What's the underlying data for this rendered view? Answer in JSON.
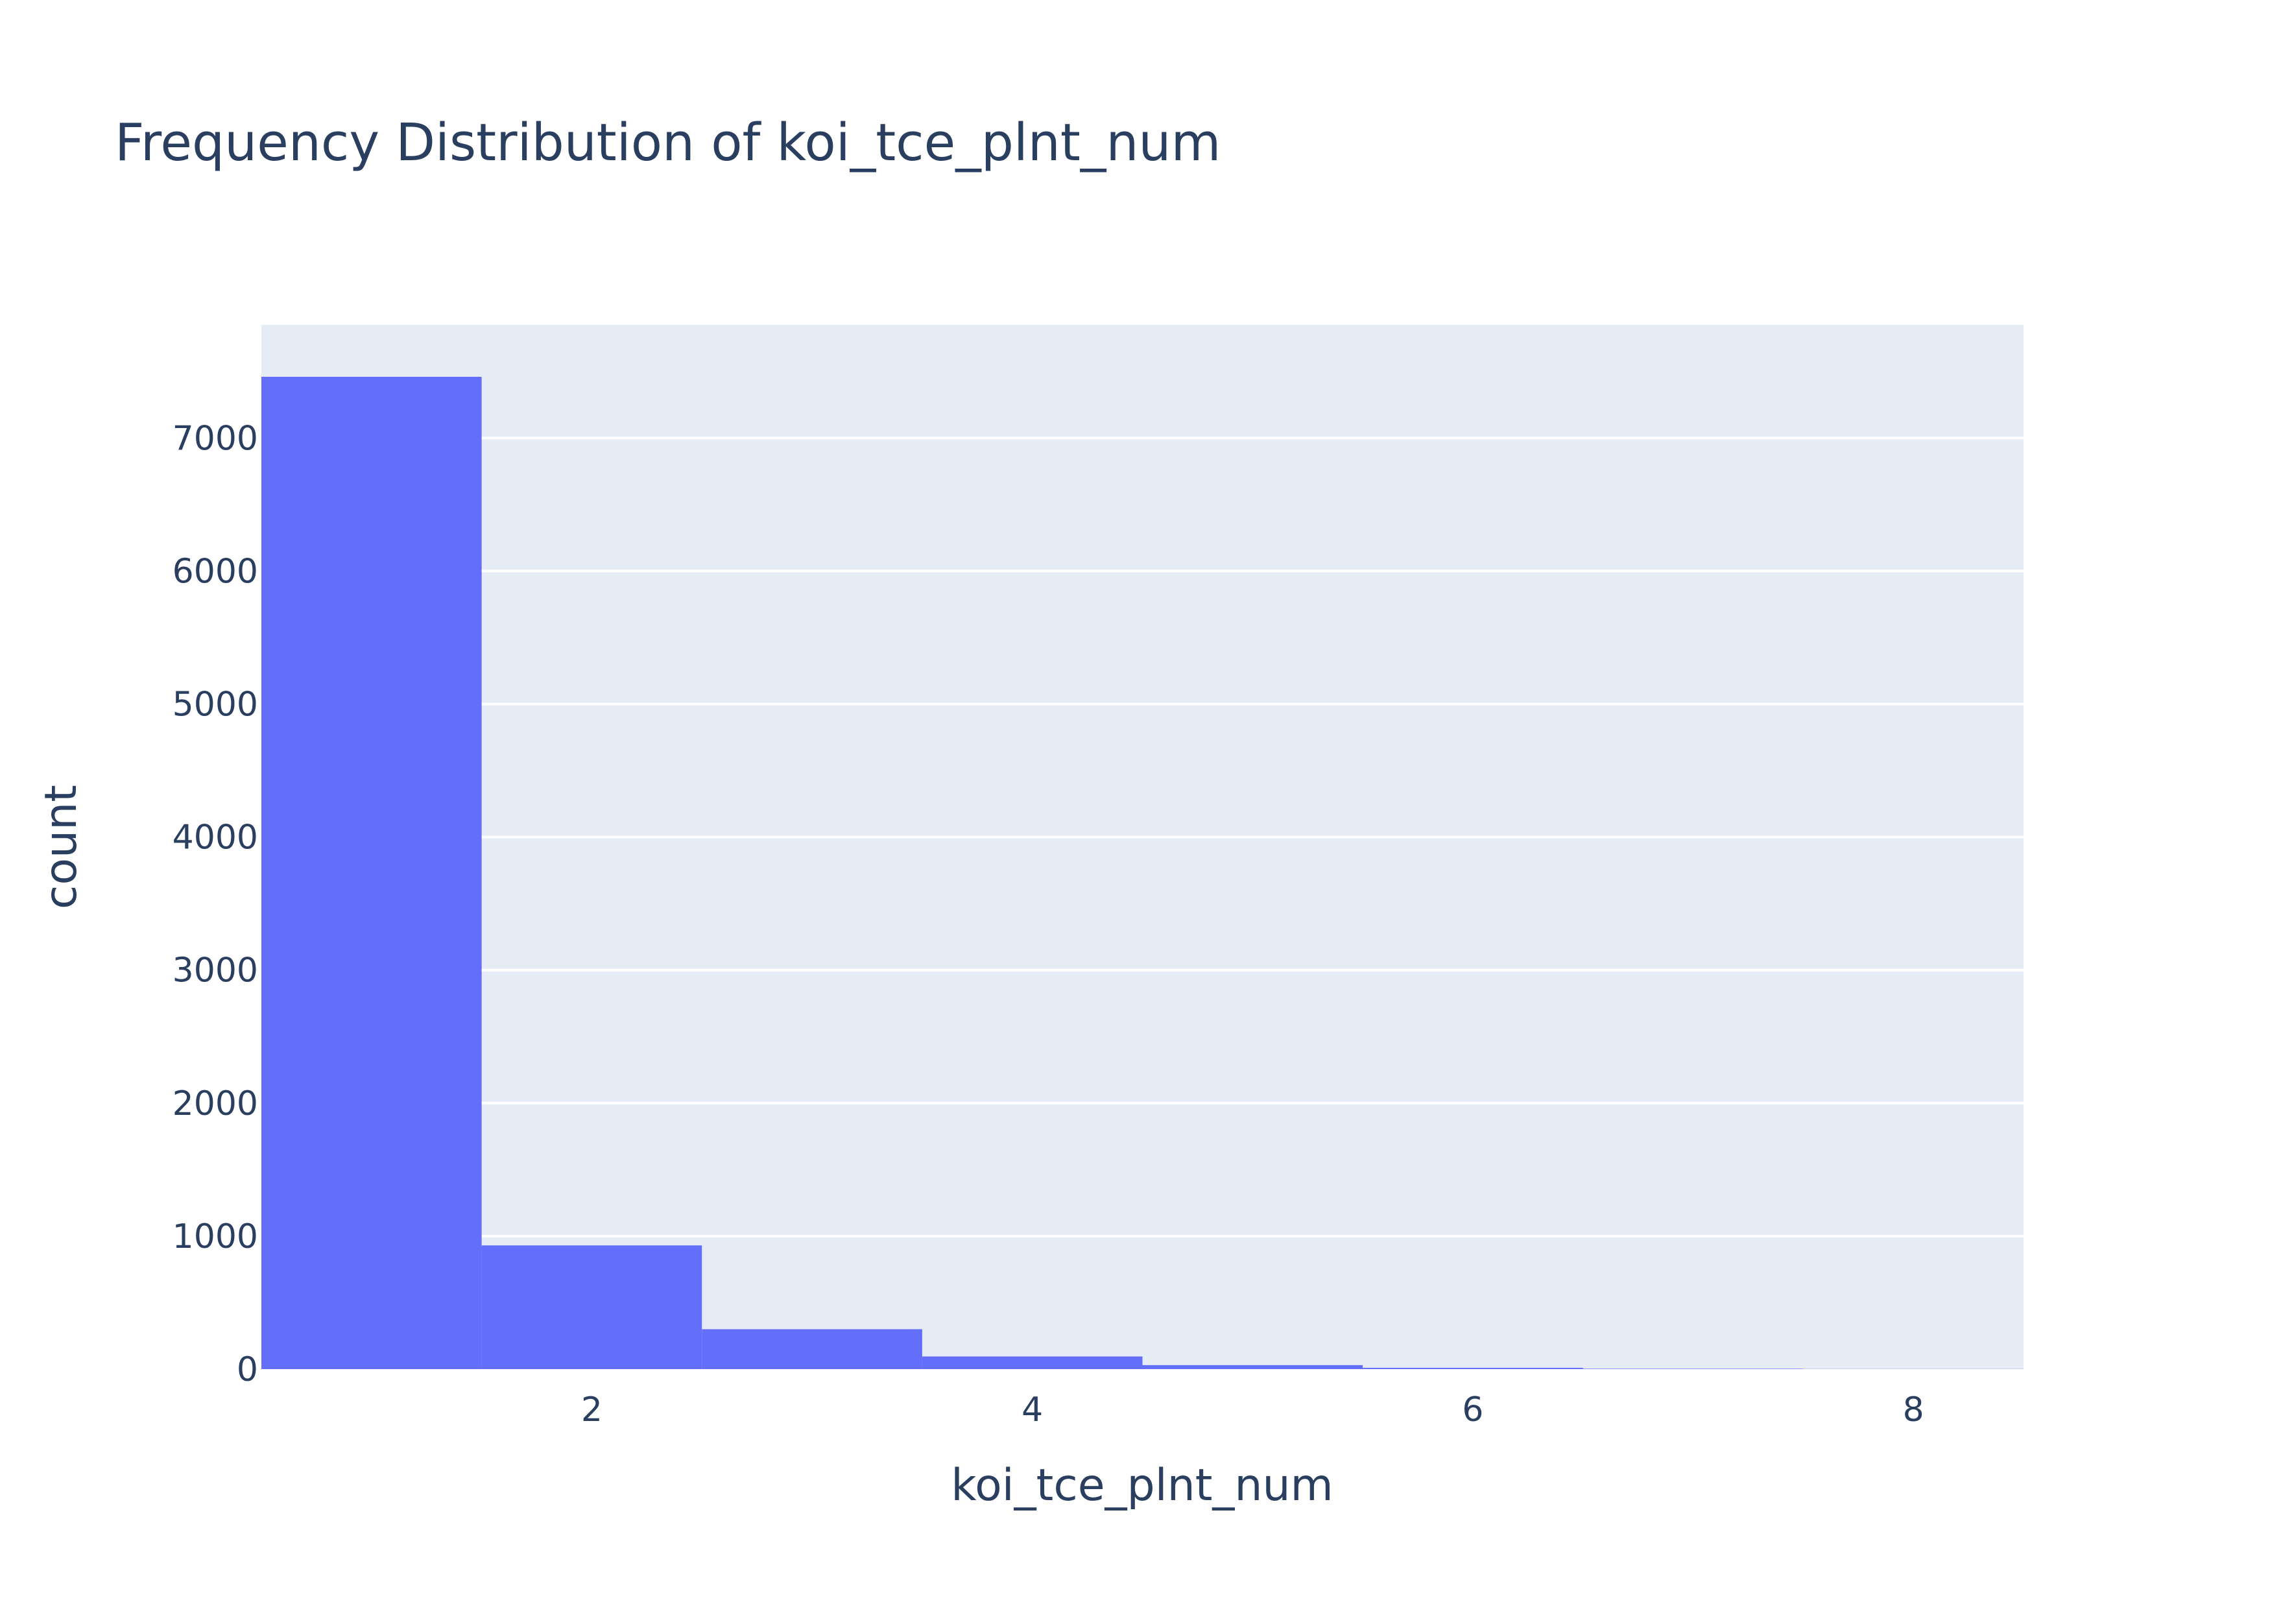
{
  "chart_data": {
    "type": "bar",
    "title": "Frequency Distribution of koi_tce_plnt_num",
    "xlabel": "koi_tce_plnt_num",
    "ylabel": "count",
    "bins": [
      {
        "x0": 0.5,
        "x1": 1.5,
        "count": 7460
      },
      {
        "x0": 1.5,
        "x1": 2.5,
        "count": 930
      },
      {
        "x0": 2.5,
        "x1": 3.5,
        "count": 300
      },
      {
        "x0": 3.5,
        "x1": 4.5,
        "count": 95
      },
      {
        "x0": 4.5,
        "x1": 5.5,
        "count": 30
      },
      {
        "x0": 5.5,
        "x1": 6.5,
        "count": 10
      },
      {
        "x0": 6.5,
        "x1": 7.5,
        "count": 3
      },
      {
        "x0": 7.5,
        "x1": 8.5,
        "count": 1
      }
    ],
    "xlim": [
      0.5,
      8.5
    ],
    "ylim": [
      0,
      7850
    ],
    "xticks": [
      2,
      4,
      6,
      8
    ],
    "yticks": [
      0,
      1000,
      2000,
      3000,
      4000,
      5000,
      6000,
      7000
    ],
    "grid": "horizontal",
    "colors": {
      "bar": "#636efa",
      "plot_background": "#e5ecf6",
      "grid": "#ffffff",
      "text": "#2a3f5f"
    }
  }
}
